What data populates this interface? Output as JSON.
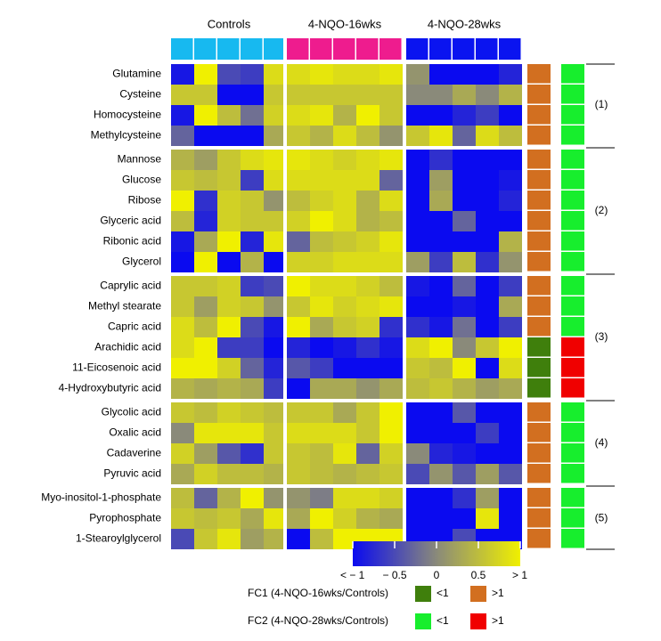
{
  "chart_data": {
    "type": "heatmap",
    "groups": [
      {
        "name": "Controls",
        "color": "#17b9f0",
        "n": 5
      },
      {
        "name": "4-NQO-16wks",
        "color": "#ee1c8e",
        "n": 5
      },
      {
        "name": "4-NQO-28wks",
        "color": "#0a14f0",
        "n": 5
      }
    ],
    "rows": [
      "Glutamine",
      "Cysteine",
      "Homocysteine",
      "Methylcysteine",
      "Mannose",
      "Glucose",
      "Ribose",
      "Glyceric acid",
      "Ribonic acid",
      "Glycerol",
      "Caprylic acid",
      "Methyl stearate",
      "Capric acid",
      "Arachidic acid",
      "11-Eicosenoic acid",
      "4-Hydroxybutyric acid",
      "Glycolic acid",
      "Oxalic acid",
      "Cadaverine",
      "Pyruvic acid",
      "Myo-inositol-1-phosphate",
      "Pyrophosphate",
      "1-Stearoylglycerol"
    ],
    "clusters": [
      {
        "label": "(1)",
        "size": 4
      },
      {
        "label": "(2)",
        "size": 6
      },
      {
        "label": "(3)",
        "size": 6
      },
      {
        "label": "(4)",
        "size": 4
      },
      {
        "label": "(5)",
        "size": 3
      }
    ],
    "values": [
      [
        -0.9,
        1.0,
        -0.5,
        -0.6,
        0.8,
        0.8,
        0.9,
        0.8,
        0.8,
        0.9,
        0.1,
        -1.0,
        -1.0,
        -1.0,
        -0.8
      ],
      [
        0.6,
        0.6,
        -1.0,
        -1.0,
        0.6,
        0.6,
        0.6,
        0.6,
        0.6,
        0.6,
        0.0,
        0.0,
        0.3,
        0.0,
        0.4
      ],
      [
        -0.9,
        1.0,
        0.5,
        -0.2,
        0.7,
        0.8,
        0.9,
        0.4,
        1.0,
        0.6,
        -1.0,
        -1.0,
        -0.8,
        -0.6,
        -1.0
      ],
      [
        -0.3,
        -1.0,
        -1.0,
        -1.0,
        0.3,
        0.6,
        0.4,
        0.8,
        0.5,
        0.1,
        0.6,
        0.9,
        -0.3,
        0.8,
        0.5
      ],
      [
        0.4,
        0.2,
        0.6,
        0.8,
        0.9,
        0.9,
        0.8,
        0.7,
        0.8,
        0.9,
        -1.0,
        -0.7,
        -1.0,
        -1.0,
        -1.0
      ],
      [
        0.6,
        0.5,
        0.6,
        -0.6,
        0.8,
        0.8,
        0.8,
        0.8,
        0.8,
        -0.3,
        -1.0,
        0.2,
        -1.0,
        -1.0,
        -0.9
      ],
      [
        1.0,
        -0.7,
        0.7,
        0.6,
        0.1,
        0.5,
        0.7,
        0.8,
        0.4,
        0.8,
        -1.0,
        0.3,
        -1.0,
        -1.0,
        -0.8
      ],
      [
        0.5,
        -0.8,
        0.7,
        0.6,
        0.6,
        0.7,
        1.0,
        0.8,
        0.4,
        0.5,
        -1.0,
        -1.0,
        -0.3,
        -1.0,
        -1.0
      ],
      [
        -0.9,
        0.3,
        1.0,
        -0.8,
        0.9,
        -0.3,
        0.5,
        0.6,
        0.7,
        0.9,
        -1.0,
        -1.0,
        -1.0,
        -1.0,
        0.4
      ],
      [
        -1.0,
        1.0,
        -1.0,
        0.4,
        -1.0,
        0.7,
        0.7,
        0.8,
        0.8,
        0.8,
        0.2,
        -0.6,
        0.5,
        -0.7,
        0.1
      ],
      [
        0.6,
        0.6,
        0.7,
        -0.6,
        -0.5,
        1.0,
        0.8,
        0.8,
        0.7,
        0.5,
        -0.9,
        -1.0,
        -0.3,
        -1.0,
        -0.6
      ],
      [
        0.6,
        0.2,
        0.7,
        0.6,
        0.1,
        0.6,
        0.9,
        0.7,
        0.8,
        0.9,
        -1.0,
        -1.0,
        -0.9,
        -1.0,
        0.3
      ],
      [
        0.8,
        0.5,
        1.0,
        -0.5,
        -0.9,
        1.0,
        0.3,
        0.6,
        0.7,
        -0.7,
        -0.7,
        -0.9,
        -0.2,
        -1.0,
        -0.6
      ],
      [
        0.8,
        1.0,
        -0.6,
        -0.6,
        -1.0,
        -0.8,
        -1.0,
        -0.9,
        -0.7,
        -0.9,
        0.8,
        1.0,
        0.0,
        0.6,
        1.0
      ],
      [
        1.0,
        1.0,
        0.7,
        -0.3,
        -0.8,
        -0.4,
        -0.6,
        -1.0,
        -1.0,
        -1.0,
        0.6,
        0.5,
        1.0,
        -1.0,
        0.8
      ],
      [
        0.4,
        0.3,
        0.4,
        0.3,
        -0.6,
        -1.0,
        0.3,
        0.3,
        0.1,
        0.3,
        0.5,
        0.6,
        0.4,
        0.2,
        0.3
      ],
      [
        0.6,
        0.5,
        0.7,
        0.6,
        0.5,
        0.6,
        0.6,
        0.3,
        0.6,
        1.0,
        -1.0,
        -1.0,
        -0.4,
        -1.0,
        -1.0
      ],
      [
        0.0,
        0.9,
        0.9,
        0.9,
        0.6,
        0.8,
        0.8,
        0.8,
        0.6,
        1.0,
        -1.0,
        -1.0,
        -1.0,
        -0.6,
        -1.0
      ],
      [
        0.7,
        0.2,
        -0.4,
        -0.7,
        0.6,
        0.6,
        0.5,
        0.9,
        -0.3,
        0.7,
        0.0,
        -0.8,
        -0.9,
        -1.0,
        -1.0
      ],
      [
        0.3,
        0.7,
        0.5,
        0.5,
        0.4,
        0.6,
        0.5,
        0.4,
        0.5,
        0.6,
        -0.5,
        0.1,
        -0.4,
        0.2,
        -0.4
      ],
      [
        0.5,
        -0.3,
        0.4,
        1.0,
        0.1,
        0.1,
        -0.1,
        0.8,
        0.8,
        0.7,
        -1.0,
        -1.0,
        -0.7,
        0.2,
        -1.0
      ],
      [
        0.6,
        0.5,
        0.6,
        0.3,
        0.9,
        0.3,
        1.0,
        0.7,
        0.4,
        0.3,
        -1.0,
        -1.0,
        -1.0,
        0.9,
        -1.0
      ],
      [
        -0.5,
        0.6,
        0.9,
        0.2,
        0.4,
        -1.0,
        0.5,
        1.0,
        1.0,
        1.0,
        -1.0,
        -1.0,
        -0.5,
        -1.0,
        -1.0
      ]
    ],
    "fc1": [
      ">1",
      ">1",
      ">1",
      ">1",
      ">1",
      ">1",
      ">1",
      ">1",
      ">1",
      ">1",
      ">1",
      ">1",
      ">1",
      "<1",
      "<1",
      "<1",
      ">1",
      ">1",
      ">1",
      ">1",
      ">1",
      ">1",
      ">1"
    ],
    "fc2": [
      "<1",
      "<1",
      "<1",
      "<1",
      "<1",
      "<1",
      "<1",
      "<1",
      "<1",
      "<1",
      "<1",
      "<1",
      "<1",
      ">1",
      ">1",
      ">1",
      "<1",
      "<1",
      "<1",
      "<1",
      "<1",
      "<1",
      "<1"
    ],
    "colorbar": {
      "range": [
        -1,
        1
      ],
      "tick_labels": [
        "< − 1",
        "− 0.5",
        "0",
        "0.5",
        "> 1"
      ],
      "tick_values": [
        -1,
        -0.5,
        0,
        0.5,
        1
      ],
      "low_color": "#0a0af0",
      "mid_color": "#8a8a7a",
      "high_color": "#f0f000"
    },
    "legend": {
      "fc1_label": "FC1 (4-NQO-16wks/Controls)",
      "fc2_label": "FC2 (4-NQO-28wks/Controls)",
      "less_label": "<1",
      "greater_label": ">1",
      "fc1_less_color": "#3f7f0c",
      "fc1_greater_color": "#d26f20",
      "fc2_less_color": "#17ee2d",
      "fc2_greater_color": "#f00000"
    }
  }
}
